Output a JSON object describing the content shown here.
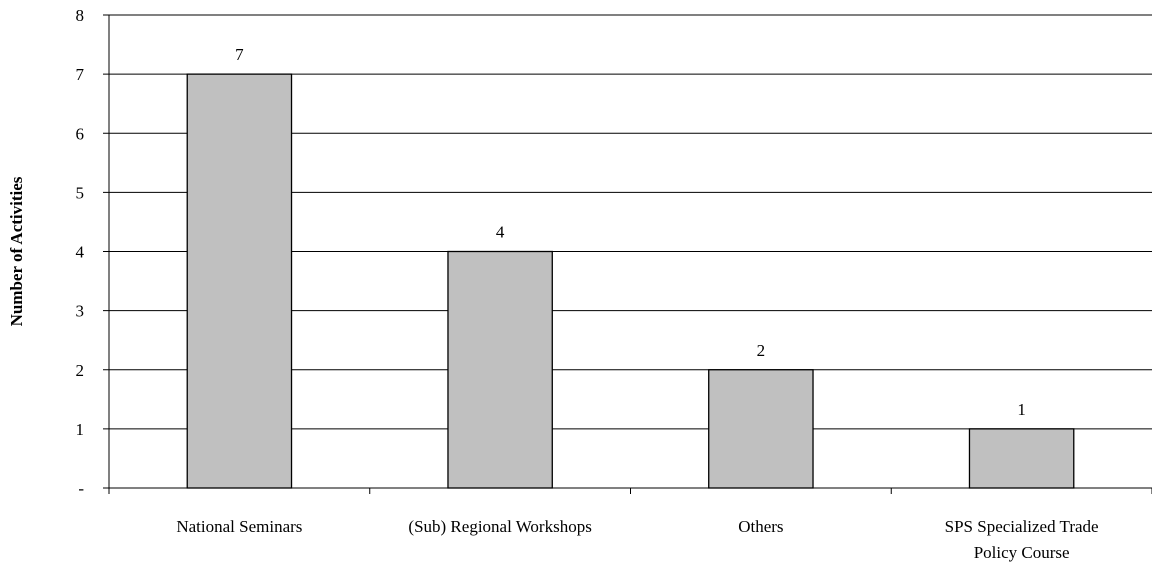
{
  "chart_data": {
    "type": "bar",
    "categories": [
      [
        "National Seminars"
      ],
      [
        "(Sub) Regional Workshops"
      ],
      [
        "Others"
      ],
      [
        "SPS Specialized Trade",
        "Policy Course"
      ]
    ],
    "values": [
      7,
      4,
      2,
      1
    ],
    "data_labels": [
      "7",
      "4",
      "2",
      "1"
    ],
    "ylabel": "Number of Activities",
    "ylim": [
      0,
      8
    ],
    "yticks": [
      0,
      1,
      2,
      3,
      4,
      5,
      6,
      7,
      8
    ],
    "ytick_labels": [
      "-",
      "1",
      "2",
      "3",
      "4",
      "5",
      "6",
      "7",
      "8"
    ],
    "grid": "horizontal",
    "legend": "none",
    "colors": {
      "bar_fill": "#c0c0c0",
      "bar_stroke": "#000000",
      "grid": "#000000",
      "axis": "#000000"
    }
  }
}
